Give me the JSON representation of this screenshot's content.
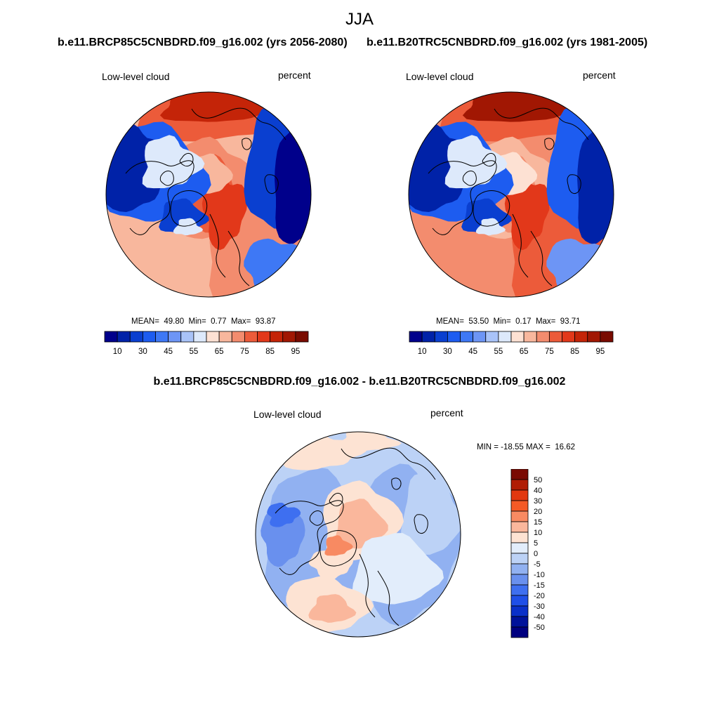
{
  "title": "JJA",
  "panels": [
    {
      "case": "b.e11.BRCP85C5CNBDRD.f09_g16.002 (yrs 2056-2080)",
      "variable": "Low-level cloud",
      "units": "percent",
      "stats": {
        "mean_label": "MEAN=",
        "mean": "49.80",
        "min_label": "Min=",
        "min": "0.77",
        "max_label": "Max=",
        "max": "93.87"
      }
    },
    {
      "case": "b.e11.B20TRC5CNBDRD.f09_g16.002 (yrs 1981-2005)",
      "variable": "Low-level cloud",
      "units": "percent",
      "stats": {
        "mean_label": "MEAN=",
        "mean": "53.50",
        "min_label": "Min=",
        "min": "0.17",
        "max_label": "Max=",
        "max": "93.71"
      }
    }
  ],
  "diff_panel": {
    "title": "b.e11.BRCP85C5CNBDRD.f09_g16.002 - b.e11.B20TRC5CNBDRD.f09_g16.002",
    "variable": "Low-level cloud",
    "units": "percent",
    "minmax_text": "MIN = -18.55 MAX =  16.62"
  },
  "chart_data": [
    {
      "type": "heatmap",
      "projection": "north-polar-stereographic",
      "title": "b.e11.BRCP85C5CNBDRD.f09_g16.002 (yrs 2056-2080)",
      "variable": "Low-level cloud",
      "units": "percent",
      "mean": 49.8,
      "min": 0.77,
      "max": 93.87,
      "colorbar_levels": [
        5,
        10,
        20,
        30,
        40,
        45,
        50,
        55,
        60,
        65,
        70,
        75,
        80,
        85,
        90,
        95
      ],
      "colorbar_labels": [
        "10",
        "30",
        "45",
        "55",
        "65",
        "75",
        "85",
        "95"
      ]
    },
    {
      "type": "heatmap",
      "projection": "north-polar-stereographic",
      "title": "b.e11.B20TRC5CNBDRD.f09_g16.002 (yrs 1981-2005)",
      "variable": "Low-level cloud",
      "units": "percent",
      "mean": 53.5,
      "min": 0.17,
      "max": 93.71,
      "colorbar_levels": [
        5,
        10,
        20,
        30,
        40,
        45,
        50,
        55,
        60,
        65,
        70,
        75,
        80,
        85,
        90,
        95
      ],
      "colorbar_labels": [
        "10",
        "30",
        "45",
        "55",
        "65",
        "75",
        "85",
        "95"
      ]
    },
    {
      "type": "heatmap",
      "projection": "north-polar-stereographic",
      "title": "b.e11.BRCP85C5CNBDRD.f09_g16.002 - b.e11.B20TRC5CNBDRD.f09_g16.002",
      "variable": "Low-level cloud",
      "units": "percent",
      "min": -18.55,
      "max": 16.62,
      "colorbar_levels": [
        50,
        40,
        30,
        20,
        15,
        10,
        5,
        0,
        -5,
        -10,
        -15,
        -20,
        -30,
        -40,
        -50
      ],
      "colorbar_labels": [
        "50",
        "40",
        "30",
        "20",
        "15",
        "10",
        "5",
        "0",
        "-5",
        "-10",
        "-15",
        "-20",
        "-30",
        "-40",
        "-50"
      ]
    }
  ],
  "colors": {
    "abs_palette": [
      "#00008b",
      "#0022a8",
      "#0a3fd0",
      "#1d5cf0",
      "#3e78f5",
      "#6d95f5",
      "#a9c3f8",
      "#dde9fb",
      "#fde1d3",
      "#f8b79d",
      "#f38c6e",
      "#ec5b3a",
      "#e2381a",
      "#c42408",
      "#a11703",
      "#790b00"
    ],
    "diff_palette": [
      "#7a0a03",
      "#b01d05",
      "#e2380f",
      "#f45a26",
      "#f88a62",
      "#fab79c",
      "#fde3d3",
      "#e2edfb",
      "#bcd2f6",
      "#91b1f1",
      "#6990ee",
      "#3e6ff0",
      "#1f4fe8",
      "#0a30c9",
      "#00129a",
      "#000080"
    ],
    "coastline": "#000000"
  }
}
